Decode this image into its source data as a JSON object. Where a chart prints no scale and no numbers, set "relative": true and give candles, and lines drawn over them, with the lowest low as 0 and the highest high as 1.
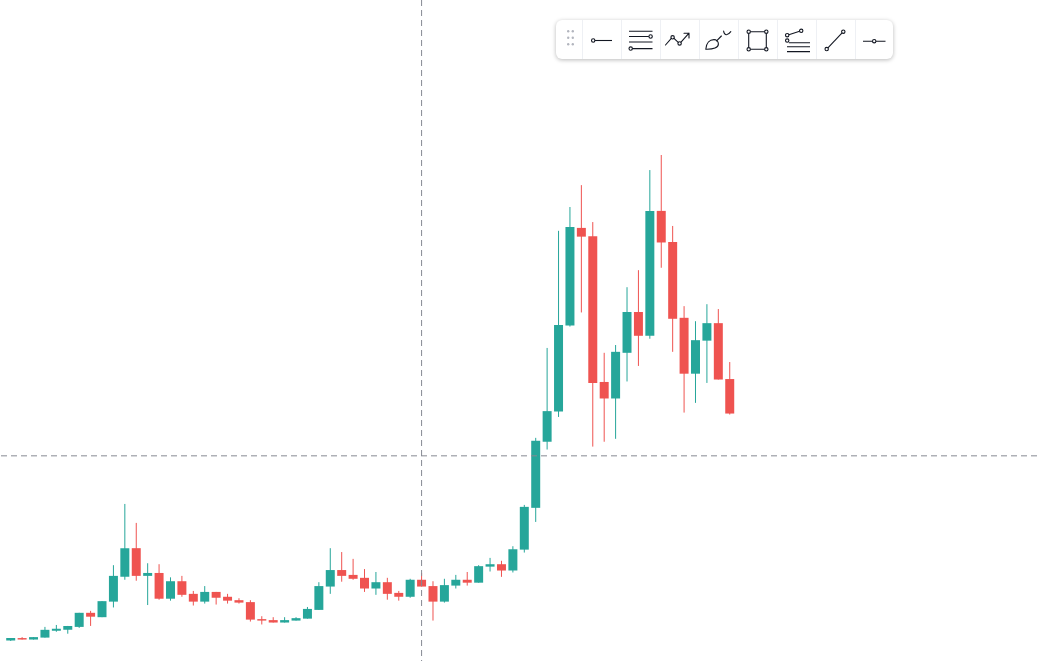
{
  "chart_data": {
    "type": "candlestick",
    "relative": true,
    "tick_labels": false,
    "categories": [
      null,
      null,
      null,
      null,
      null,
      null,
      null,
      null,
      null,
      null,
      null,
      null,
      null,
      null,
      null,
      null,
      null,
      null,
      null,
      null,
      null,
      null,
      null,
      null,
      null,
      null,
      null,
      null,
      null,
      null,
      null,
      null,
      null,
      null,
      null,
      null,
      null,
      null,
      null,
      null,
      null,
      null,
      null,
      null,
      null,
      null,
      null,
      null,
      null,
      null,
      null,
      null,
      null,
      null,
      null,
      null,
      null,
      null,
      null,
      null,
      null,
      null,
      null,
      null
    ],
    "ohlc": [
      [
        0.001,
        0.006,
        0,
        0.006
      ],
      [
        0.006,
        0.008,
        0.003,
        0.003
      ],
      [
        0.003,
        0.008,
        0.003,
        0.008
      ],
      [
        0.007,
        0.029,
        0.007,
        0.023
      ],
      [
        0.021,
        0.033,
        0.019,
        0.025
      ],
      [
        0.023,
        0.031,
        0.015,
        0.031
      ],
      [
        0.029,
        0.058,
        0.027,
        0.058
      ],
      [
        0.058,
        0.062,
        0.031,
        0.05
      ],
      [
        0.049,
        0.082,
        0.049,
        0.082
      ],
      [
        0.081,
        0.156,
        0.069,
        0.134
      ],
      [
        0.132,
        0.282,
        0.126,
        0.191
      ],
      [
        0.191,
        0.243,
        0.124,
        0.134
      ],
      [
        0.134,
        0.16,
        0.074,
        0.14
      ],
      [
        0.14,
        0.158,
        0.085,
        0.087
      ],
      [
        0.087,
        0.131,
        0.083,
        0.123
      ],
      [
        0.123,
        0.134,
        0.091,
        0.095
      ],
      [
        0.097,
        0.103,
        0.073,
        0.081
      ],
      [
        0.081,
        0.113,
        0.077,
        0.101
      ],
      [
        0.101,
        0.101,
        0.075,
        0.089
      ],
      [
        0.091,
        0.097,
        0.077,
        0.083
      ],
      [
        0.084,
        0.088,
        0.077,
        0.079
      ],
      [
        0.08,
        0.084,
        0.04,
        0.044
      ],
      [
        0.045,
        0.051,
        0.034,
        0.042
      ],
      [
        0.043,
        0.049,
        0.038,
        0.038
      ],
      [
        0.038,
        0.049,
        0.038,
        0.043
      ],
      [
        0.042,
        0.049,
        0.042,
        0.047
      ],
      [
        0.046,
        0.07,
        0.046,
        0.066
      ],
      [
        0.064,
        0.121,
        0.064,
        0.113
      ],
      [
        0.112,
        0.191,
        0.097,
        0.146
      ],
      [
        0.146,
        0.183,
        0.122,
        0.134
      ],
      [
        0.136,
        0.169,
        0.126,
        0.128
      ],
      [
        0.13,
        0.148,
        0.101,
        0.108
      ],
      [
        0.108,
        0.142,
        0.095,
        0.121
      ],
      [
        0.121,
        0.13,
        0.085,
        0.097
      ],
      [
        0.099,
        0.103,
        0.083,
        0.091
      ],
      [
        0.091,
        0.128,
        0.089,
        0.126
      ],
      [
        0.126,
        0.14,
        0.112,
        0.112
      ],
      [
        0.113,
        0.123,
        0.042,
        0.081
      ],
      [
        0.081,
        0.128,
        0.079,
        0.115
      ],
      [
        0.114,
        0.136,
        0.108,
        0.126
      ],
      [
        0.126,
        0.142,
        0.114,
        0.12
      ],
      [
        0.12,
        0.156,
        0.12,
        0.154
      ],
      [
        0.153,
        0.171,
        0.143,
        0.158
      ],
      [
        0.158,
        0.165,
        0.132,
        0.145
      ],
      [
        0.145,
        0.195,
        0.141,
        0.189
      ],
      [
        0.188,
        0.28,
        0.182,
        0.276
      ],
      [
        0.274,
        0.418,
        0.245,
        0.412
      ],
      [
        0.41,
        0.603,
        0.394,
        0.473
      ],
      [
        0.472,
        0.844,
        0.461,
        0.65
      ],
      [
        0.649,
        0.893,
        0.647,
        0.852
      ],
      [
        0.85,
        0.938,
        0.676,
        0.832
      ],
      [
        0.833,
        0.862,
        0.4,
        0.531
      ],
      [
        0.533,
        0.593,
        0.41,
        0.499
      ],
      [
        0.499,
        0.609,
        0.416,
        0.595
      ],
      [
        0.593,
        0.728,
        0.534,
        0.677
      ],
      [
        0.677,
        0.763,
        0.566,
        0.628
      ],
      [
        0.628,
        0.969,
        0.622,
        0.885
      ],
      [
        0.885,
        1,
        0.768,
        0.82
      ],
      [
        0.821,
        0.854,
        0.595,
        0.663
      ],
      [
        0.665,
        0.689,
        0.47,
        0.55
      ],
      [
        0.55,
        0.658,
        0.49,
        0.619
      ],
      [
        0.618,
        0.693,
        0.531,
        0.654
      ],
      [
        0.654,
        0.683,
        0.538,
        0.538
      ],
      [
        0.539,
        0.574,
        0.466,
        0.468
      ]
    ],
    "colors": [
      "#26a69a",
      "#ef5350",
      "#26a69a",
      "#26a69a",
      "#26a69a",
      "#26a69a",
      "#26a69a",
      "#ef5350",
      "#26a69a",
      "#26a69a",
      "#26a69a",
      "#ef5350",
      "#26a69a",
      "#ef5350",
      "#26a69a",
      "#ef5350",
      "#ef5350",
      "#26a69a",
      "#ef5350",
      "#ef5350",
      "#ef5350",
      "#ef5350",
      "#ef5350",
      "#ef5350",
      "#26a69a",
      "#26a69a",
      "#26a69a",
      "#26a69a",
      "#26a69a",
      "#ef5350",
      "#ef5350",
      "#ef5350",
      "#26a69a",
      "#ef5350",
      "#ef5350",
      "#26a69a",
      "#ef5350",
      "#ef5350",
      "#26a69a",
      "#26a69a",
      "#ef5350",
      "#26a69a",
      "#26a69a",
      "#ef5350",
      "#26a69a",
      "#26a69a",
      "#26a69a",
      "#26a69a",
      "#26a69a",
      "#26a69a",
      "#ef5350",
      "#ef5350",
      "#ef5350",
      "#26a69a",
      "#26a69a",
      "#ef5350",
      "#26a69a",
      "#ef5350",
      "#ef5350",
      "#ef5350",
      "#26a69a",
      "#26a69a",
      "#ef5350",
      "#ef5350"
    ],
    "ref_lines": [
      {
        "axis": "y",
        "value": 0.381,
        "color": "#868993",
        "line_style": "dashed"
      }
    ]
  }
}
